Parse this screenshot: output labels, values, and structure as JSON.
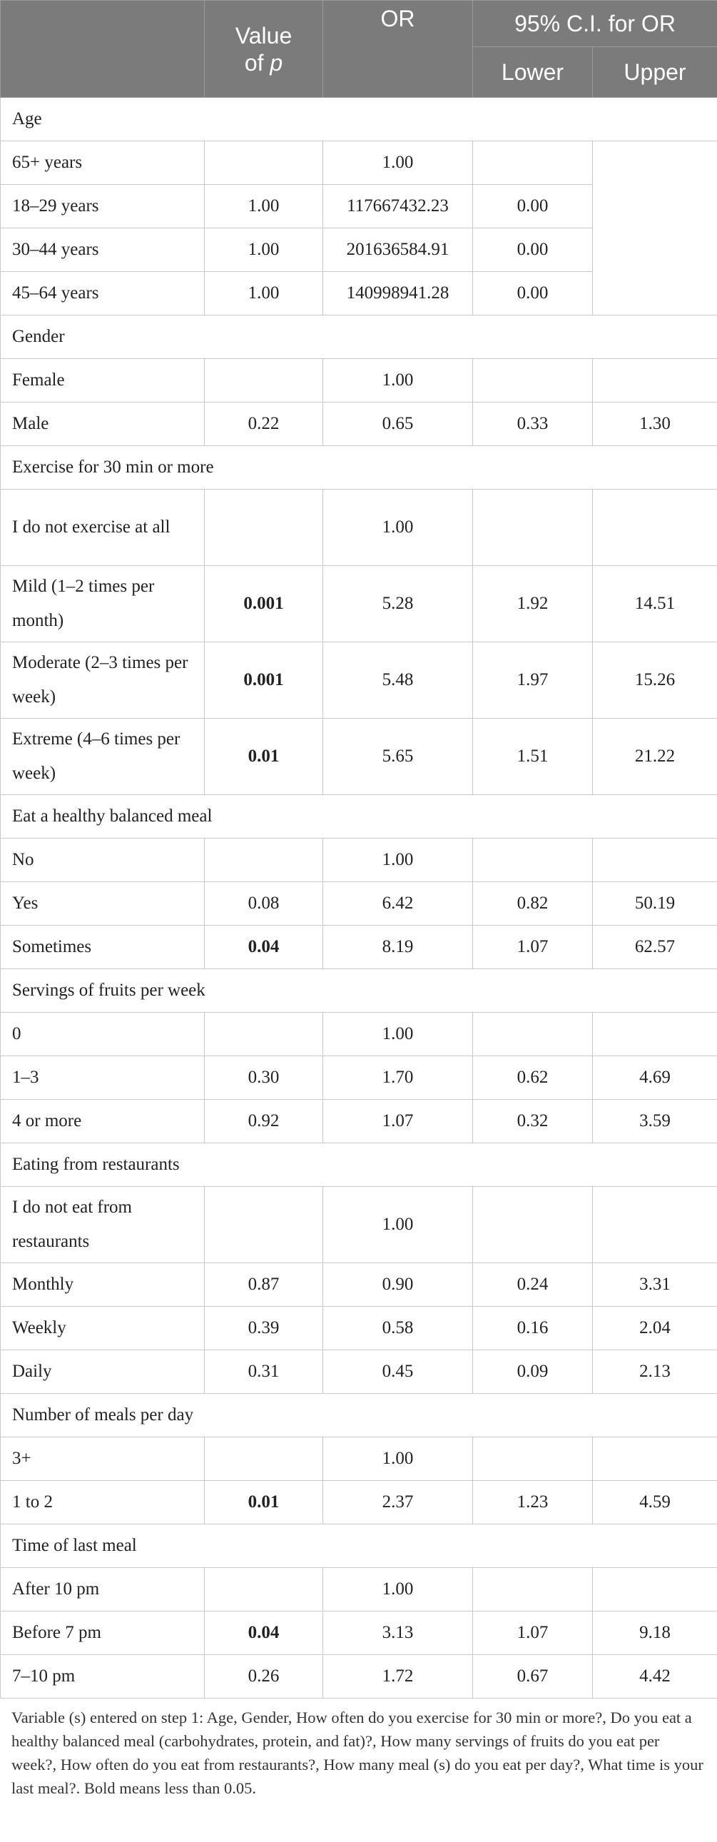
{
  "header": {
    "col_empty": "",
    "col_p_line1": "Value",
    "col_p_line2": "of p",
    "col_or": "OR",
    "col_ci": "95% C.I. for OR",
    "col_lower": "Lower",
    "col_upper": "Upper"
  },
  "rows": [
    {
      "type": "section",
      "label": "Age"
    },
    {
      "type": "data",
      "label": "65+ years",
      "p": "",
      "or": "1.00",
      "lower": "",
      "upper": "",
      "bold_p": false
    },
    {
      "type": "data",
      "label": "18–29 years",
      "p": "1.00",
      "or": "117667432.23",
      "lower": "0.00",
      "upper": "",
      "bold_p": false
    },
    {
      "type": "data",
      "label": "30–44 years",
      "p": "1.00",
      "or": "201636584.91",
      "lower": "0.00",
      "upper": "",
      "bold_p": false
    },
    {
      "type": "data",
      "label": "45–64 years",
      "p": "1.00",
      "or": "140998941.28",
      "lower": "0.00",
      "upper": "",
      "bold_p": false
    },
    {
      "type": "section",
      "label": "Gender"
    },
    {
      "type": "data",
      "label": "Female",
      "p": "",
      "or": "1.00",
      "lower": "",
      "upper": "",
      "bold_p": false
    },
    {
      "type": "data",
      "label": "Male",
      "p": "0.22",
      "or": "0.65",
      "lower": "0.33",
      "upper": "1.30",
      "bold_p": false
    },
    {
      "type": "section",
      "label": "Exercise for 30 min or more"
    },
    {
      "type": "data",
      "tall": true,
      "label": "I do not exercise at all",
      "p": "",
      "or": "1.00",
      "lower": "",
      "upper": "",
      "bold_p": false
    },
    {
      "type": "data",
      "tall": true,
      "label": "Mild (1–2 times per month)",
      "p": "0.001",
      "or": "5.28",
      "lower": "1.92",
      "upper": "14.51",
      "bold_p": true
    },
    {
      "type": "data",
      "tall": true,
      "label": "Moderate (2–3 times per week)",
      "p": "0.001",
      "or": "5.48",
      "lower": "1.97",
      "upper": "15.26",
      "bold_p": true
    },
    {
      "type": "data",
      "tall": true,
      "label": "Extreme (4–6 times per week)",
      "p": "0.01",
      "or": "5.65",
      "lower": "1.51",
      "upper": "21.22",
      "bold_p": true
    },
    {
      "type": "section",
      "label": "Eat a healthy balanced meal"
    },
    {
      "type": "data",
      "label": "No",
      "p": "",
      "or": "1.00",
      "lower": "",
      "upper": "",
      "bold_p": false
    },
    {
      "type": "data",
      "label": "Yes",
      "p": "0.08",
      "or": "6.42",
      "lower": "0.82",
      "upper": "50.19",
      "bold_p": false
    },
    {
      "type": "data",
      "label": "Sometimes",
      "p": "0.04",
      "or": "8.19",
      "lower": "1.07",
      "upper": "62.57",
      "bold_p": true
    },
    {
      "type": "section",
      "label": "Servings of fruits per week"
    },
    {
      "type": "data",
      "label": "0",
      "p": "",
      "or": "1.00",
      "lower": "",
      "upper": "",
      "bold_p": false
    },
    {
      "type": "data",
      "label": "1–3",
      "p": "0.30",
      "or": "1.70",
      "lower": "0.62",
      "upper": "4.69",
      "bold_p": false
    },
    {
      "type": "data",
      "label": "4 or more",
      "p": "0.92",
      "or": "1.07",
      "lower": "0.32",
      "upper": "3.59",
      "bold_p": false
    },
    {
      "type": "section",
      "label": "Eating from restaurants"
    },
    {
      "type": "data",
      "tall": true,
      "label": "I do not eat from restaurants",
      "p": "",
      "or": "1.00",
      "lower": "",
      "upper": "",
      "bold_p": false
    },
    {
      "type": "data",
      "label": "Monthly",
      "p": "0.87",
      "or": "0.90",
      "lower": "0.24",
      "upper": "3.31",
      "bold_p": false
    },
    {
      "type": "data",
      "label": "Weekly",
      "p": "0.39",
      "or": "0.58",
      "lower": "0.16",
      "upper": "2.04",
      "bold_p": false
    },
    {
      "type": "data",
      "label": "Daily",
      "p": "0.31",
      "or": "0.45",
      "lower": "0.09",
      "upper": "2.13",
      "bold_p": false
    },
    {
      "type": "section",
      "label": "Number of meals per day"
    },
    {
      "type": "data",
      "label": "3+",
      "p": "",
      "or": "1.00",
      "lower": "",
      "upper": "",
      "bold_p": false
    },
    {
      "type": "data",
      "label": "1 to 2",
      "p": "0.01",
      "or": "2.37",
      "lower": "1.23",
      "upper": "4.59",
      "bold_p": true
    },
    {
      "type": "section",
      "label": "Time of last meal"
    },
    {
      "type": "data",
      "label": "After 10 pm",
      "p": "",
      "or": "1.00",
      "lower": "",
      "upper": "",
      "bold_p": false
    },
    {
      "type": "data",
      "label": "Before 7 pm",
      "p": "0.04",
      "or": "3.13",
      "lower": "1.07",
      "upper": "9.18",
      "bold_p": true
    },
    {
      "type": "data",
      "label": "7–10 pm",
      "p": "0.26",
      "or": "1.72",
      "lower": "0.67",
      "upper": "4.42",
      "bold_p": false
    }
  ],
  "footnote": "Variable (s) entered on step 1: Age, Gender, How often do you exercise for 30 min or more?, Do you eat a healthy balanced meal (carbohydrates, protein, and fat)?, How many servings of fruits do you eat per week?, How often do you eat from restaurants?, How many meal (s) do you eat per day?, What time is your last meal?. Bold means less than 0.05."
}
